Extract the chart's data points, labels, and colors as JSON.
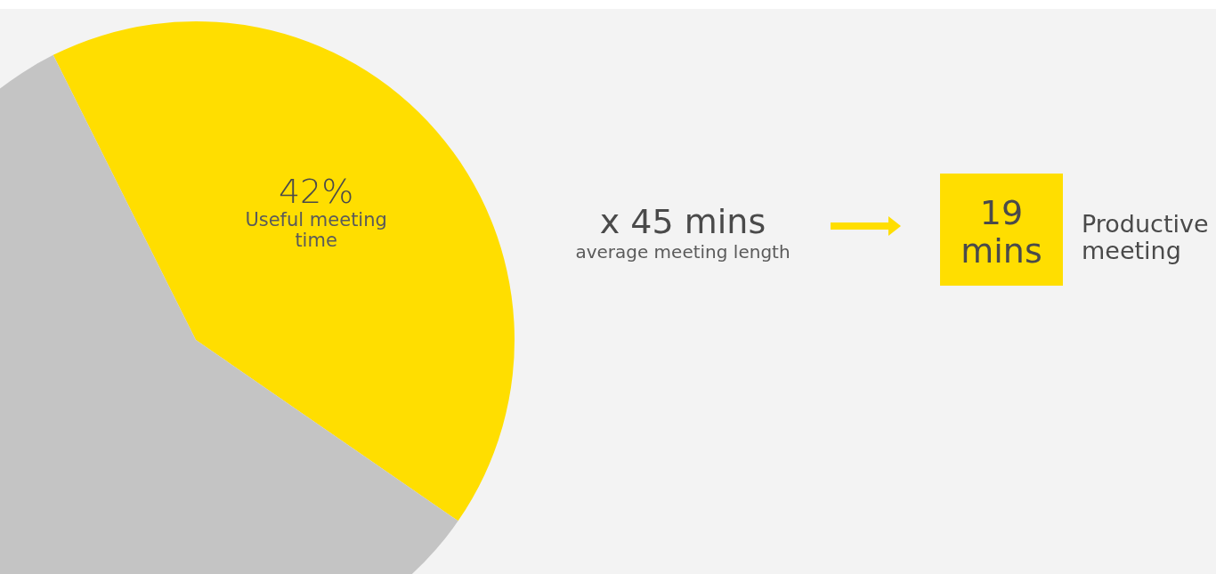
{
  "chart_data": {
    "type": "pie",
    "categories": [
      "Useful meeting time",
      null
    ],
    "values": [
      42,
      58
    ],
    "colors": [
      "#ffde00",
      "#c4c4c4"
    ],
    "value_labels": [
      "42%",
      null
    ],
    "annotations": [
      "x 45 mins",
      "average meeting length",
      "19 mins",
      "Productive meeting"
    ]
  }
}
